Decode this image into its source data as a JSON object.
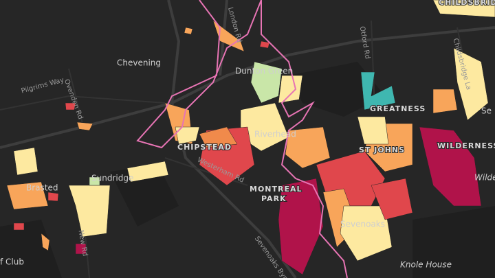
{
  "map": {
    "labels": [
      "Chevening",
      "Pilgrims Way",
      "Ovenden Rd",
      "London Rd",
      "Dunton Green",
      "Otford Rd",
      "CHILDSBRIDGE",
      "Childsbridge La",
      "GREATNESS",
      "Riverhead",
      "CHIPSTEAD",
      "Westerham Rd",
      "ST JOHNS",
      "WILDERNESS",
      "Wilder",
      "Sundridge",
      "Brasted",
      "MONTREAL",
      "PARK",
      "Sevenoaks",
      "New Rd",
      "Knole House",
      "Sevenoaks Bypass",
      "f Club",
      "Se"
    ]
  }
}
